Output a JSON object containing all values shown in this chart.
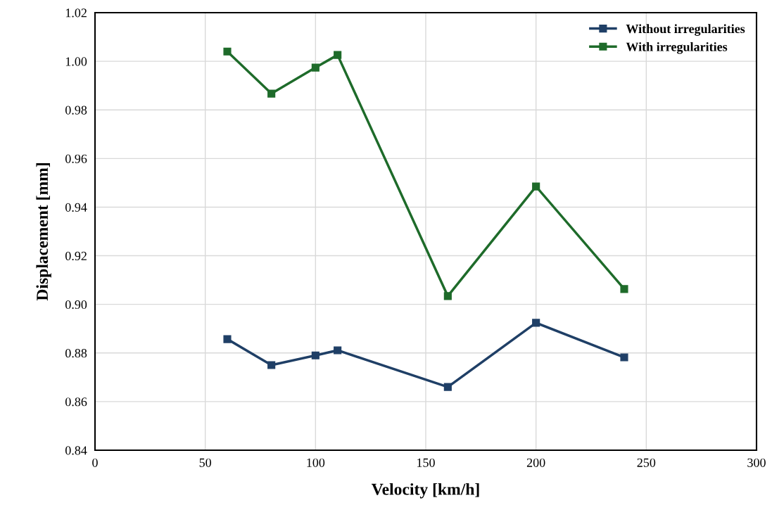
{
  "chart_data": {
    "type": "line",
    "xlabel": "Velocity [km/h]",
    "ylabel": "Displacement [mm]",
    "xlim": [
      0,
      300
    ],
    "xticks": [
      0,
      50,
      100,
      150,
      200,
      250,
      300
    ],
    "ylim": [
      0.84,
      1.02
    ],
    "yticks": [
      {
        "value": 0.84,
        "label": "0.84"
      },
      {
        "value": 0.86,
        "label": "0.86"
      },
      {
        "value": 0.88,
        "label": "0.88"
      },
      {
        "value": 0.9,
        "label": "0.90"
      },
      {
        "value": 0.92,
        "label": "0.92"
      },
      {
        "value": 0.94,
        "label": "0.94"
      },
      {
        "value": 0.96,
        "label": "0.96"
      },
      {
        "value": 0.98,
        "label": "0.98"
      },
      {
        "value": 1.0,
        "label": "1.00"
      },
      {
        "value": 1.02,
        "label": "1.02"
      }
    ],
    "grid": true,
    "legend": "top right",
    "marker": "square",
    "line_style": "solid",
    "x": [
      60,
      80,
      100,
      110,
      160,
      200,
      240
    ],
    "series": [
      {
        "name": "Without irregularities",
        "color": "#1f3f66",
        "values": [
          0.8857,
          0.875,
          0.879,
          0.8811,
          0.866,
          0.8924,
          0.8782
        ]
      },
      {
        "name": "With irregularities",
        "color": "#1e6b2a",
        "values": [
          1.004,
          0.9867,
          0.9974,
          1.0026,
          0.9034,
          0.9485,
          0.9063
        ]
      }
    ]
  }
}
